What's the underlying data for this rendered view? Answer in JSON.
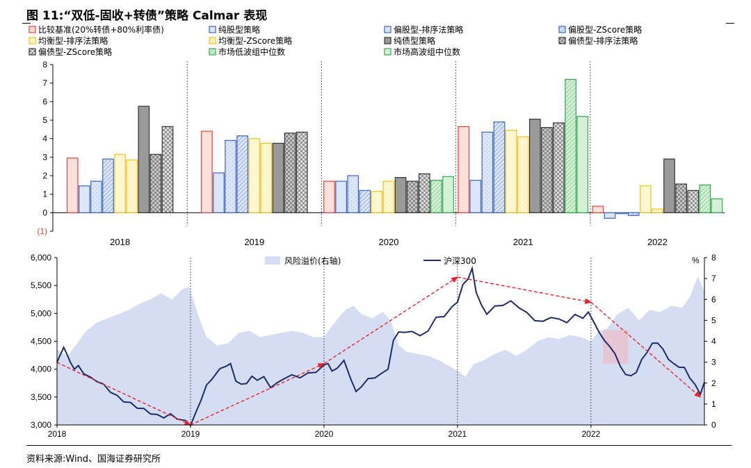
{
  "title": "图 11:“双低-固收+转债”策略 Calmar 表现",
  "source": "资料来源:Wind、国海证券研究所",
  "chart_data": [
    {
      "type": "bar",
      "categories": [
        "2018",
        "2019",
        "2020",
        "2021",
        "2022"
      ],
      "y_ticks": [
        "8",
        "7",
        "6",
        "5",
        "4",
        "3",
        "2",
        "1",
        "0",
        "(1)"
      ],
      "ylim": [
        -1,
        8
      ],
      "grid": false,
      "legend_position": "top",
      "series": [
        {
          "name": "比较基准(20%转债+80%利率债)",
          "color": "#E8403A",
          "fill": "#FBE0DC",
          "pattern": "solid",
          "values": [
            2.95,
            4.4,
            1.7,
            4.65,
            0.35
          ]
        },
        {
          "name": "纯股型策略",
          "color": "#3A64C8",
          "fill": "#DCE6F6",
          "pattern": "solid",
          "values": [
            1.45,
            2.15,
            1.7,
            1.75,
            -0.3
          ]
        },
        {
          "name": "偏股型-排序法策略",
          "color": "#3A64C8",
          "fill": "#DCE6F6",
          "pattern": "light",
          "values": [
            1.7,
            3.9,
            2.0,
            4.35,
            -0.05
          ]
        },
        {
          "name": "偏股型-ZScore策略",
          "color": "#3A64C8",
          "fill": "#DCE6F6",
          "pattern": "hatch",
          "values": [
            2.9,
            4.15,
            1.2,
            4.9,
            -0.15
          ]
        },
        {
          "name": "均衡型策略",
          "color": "#F0C419",
          "fill": "#FFF6D2",
          "pattern": "solid",
          "values": [
            3.15,
            4.0,
            1.15,
            4.45,
            1.45
          ]
        },
        {
          "name": "均衡型-排序法策略",
          "color": "#F0C419",
          "fill": "#FFF6D2",
          "pattern": "light",
          "values": [
            2.85,
            3.75,
            1.7,
            4.1,
            0.2
          ]
        },
        {
          "name": "均衡型-ZScore策略",
          "color": "#F0C419",
          "fill": "#FFF6D2",
          "pattern": "hatch",
          "values": [
            null,
            null,
            null,
            null,
            null
          ]
        },
        {
          "name": "纯债型策略",
          "color": "#333333",
          "fill": "#9A9A9A",
          "pattern": "solid",
          "values": [
            5.75,
            3.75,
            1.9,
            5.05,
            2.9
          ]
        },
        {
          "name": "偏债型-排序法策略",
          "color": "#333333",
          "fill": "#C8C8C8",
          "pattern": "check",
          "values": [
            3.15,
            4.3,
            1.7,
            4.6,
            1.55
          ]
        },
        {
          "name": "偏债型-ZScore策略",
          "color": "#333333",
          "fill": "#DDDDDD",
          "pattern": "check",
          "values": [
            4.65,
            4.35,
            2.1,
            4.85,
            1.2
          ]
        },
        {
          "name": "市场低波组中位数",
          "color": "#2EAA4A",
          "fill": "#D6F0D8",
          "pattern": "hatch",
          "values": [
            null,
            null,
            1.75,
            7.2,
            1.5
          ]
        },
        {
          "name": "市场高波组中位数",
          "color": "#2EAA4A",
          "fill": "#D6F0D8",
          "pattern": "solid",
          "values": [
            null,
            null,
            1.95,
            5.2,
            0.75
          ]
        }
      ],
      "legend_order": [
        0,
        1,
        2,
        3,
        5,
        6,
        7,
        8,
        9,
        10,
        11
      ]
    },
    {
      "type": "area",
      "x_ticks": [
        "2018",
        "2019",
        "2020",
        "2021",
        "2022"
      ],
      "y_left_ticks": [
        "6,000",
        "5,500",
        "5,000",
        "4,500",
        "4,000",
        "3,500",
        "3,000"
      ],
      "y_right_ticks": [
        "8",
        "7",
        "6",
        "5",
        "4",
        "3",
        "2",
        "1",
        "0"
      ],
      "y_right_unit": "%",
      "ylim_left": [
        3000,
        6000
      ],
      "ylim_right": [
        0,
        8
      ],
      "xlim": [
        2018.0,
        2022.85
      ],
      "series": [
        {
          "name": "风险溢价(右轴)",
          "axis": "right",
          "kind": "area",
          "color": "#D4DDF1",
          "points": [
            [
              2018.0,
              3.6
            ],
            [
              2018.08,
              3.3
            ],
            [
              2018.15,
              3.9
            ],
            [
              2018.22,
              4.5
            ],
            [
              2018.3,
              4.9
            ],
            [
              2018.38,
              5.1
            ],
            [
              2018.46,
              5.3
            ],
            [
              2018.54,
              5.5
            ],
            [
              2018.62,
              5.8
            ],
            [
              2018.7,
              6.0
            ],
            [
              2018.78,
              6.3
            ],
            [
              2018.86,
              6.0
            ],
            [
              2018.94,
              6.5
            ],
            [
              2018.99,
              6.6
            ],
            [
              2019.02,
              6.0
            ],
            [
              2019.06,
              5.2
            ],
            [
              2019.12,
              4.2
            ],
            [
              2019.2,
              3.8
            ],
            [
              2019.28,
              3.9
            ],
            [
              2019.36,
              4.4
            ],
            [
              2019.44,
              4.5
            ],
            [
              2019.52,
              4.2
            ],
            [
              2019.6,
              4.3
            ],
            [
              2019.68,
              4.4
            ],
            [
              2019.76,
              4.5
            ],
            [
              2019.84,
              4.4
            ],
            [
              2019.92,
              4.2
            ],
            [
              2020.0,
              4.2
            ],
            [
              2020.08,
              4.9
            ],
            [
              2020.16,
              5.5
            ],
            [
              2020.22,
              5.7
            ],
            [
              2020.28,
              5.3
            ],
            [
              2020.36,
              5.1
            ],
            [
              2020.44,
              5.4
            ],
            [
              2020.5,
              5.0
            ],
            [
              2020.56,
              3.8
            ],
            [
              2020.62,
              3.5
            ],
            [
              2020.7,
              3.4
            ],
            [
              2020.78,
              3.3
            ],
            [
              2020.86,
              3.1
            ],
            [
              2020.94,
              2.8
            ],
            [
              2021.0,
              2.6
            ],
            [
              2021.06,
              2.3
            ],
            [
              2021.12,
              2.9
            ],
            [
              2021.2,
              3.1
            ],
            [
              2021.28,
              3.4
            ],
            [
              2021.36,
              3.6
            ],
            [
              2021.44,
              3.3
            ],
            [
              2021.52,
              3.6
            ],
            [
              2021.6,
              4.0
            ],
            [
              2021.68,
              4.2
            ],
            [
              2021.76,
              4.1
            ],
            [
              2021.84,
              4.3
            ],
            [
              2021.92,
              4.2
            ],
            [
              2022.0,
              4.0
            ],
            [
              2022.06,
              4.5
            ],
            [
              2022.12,
              4.6
            ],
            [
              2022.2,
              5.3
            ],
            [
              2022.28,
              5.6
            ],
            [
              2022.36,
              5.0
            ],
            [
              2022.44,
              5.5
            ],
            [
              2022.52,
              5.4
            ],
            [
              2022.6,
              5.7
            ],
            [
              2022.68,
              5.6
            ],
            [
              2022.74,
              6.1
            ],
            [
              2022.8,
              7.1
            ],
            [
              2022.85,
              6.4
            ]
          ]
        },
        {
          "name": "沪深300",
          "axis": "left",
          "kind": "line",
          "color": "#1B2A6B",
          "points": [
            [
              2018.0,
              4120
            ],
            [
              2018.02,
              4250
            ],
            [
              2018.05,
              4360
            ],
            [
              2018.07,
              4300
            ],
            [
              2018.1,
              4100
            ],
            [
              2018.13,
              4000
            ],
            [
              2018.16,
              4050
            ],
            [
              2018.2,
              3950
            ],
            [
              2018.25,
              3850
            ],
            [
              2018.3,
              3800
            ],
            [
              2018.35,
              3730
            ],
            [
              2018.4,
              3600
            ],
            [
              2018.45,
              3500
            ],
            [
              2018.5,
              3420
            ],
            [
              2018.55,
              3380
            ],
            [
              2018.6,
              3300
            ],
            [
              2018.65,
              3280
            ],
            [
              2018.7,
              3230
            ],
            [
              2018.75,
              3180
            ],
            [
              2018.8,
              3150
            ],
            [
              2018.85,
              3200
            ],
            [
              2018.9,
              3120
            ],
            [
              2018.96,
              3050
            ],
            [
              2019.0,
              3000
            ],
            [
              2019.04,
              3200
            ],
            [
              2019.08,
              3450
            ],
            [
              2019.12,
              3700
            ],
            [
              2019.16,
              3850
            ],
            [
              2019.22,
              4000
            ],
            [
              2019.27,
              4080
            ],
            [
              2019.3,
              4100
            ],
            [
              2019.34,
              3800
            ],
            [
              2019.38,
              3700
            ],
            [
              2019.42,
              3750
            ],
            [
              2019.46,
              3850
            ],
            [
              2019.5,
              3800
            ],
            [
              2019.55,
              3850
            ],
            [
              2019.6,
              3700
            ],
            [
              2019.65,
              3750
            ],
            [
              2019.7,
              3850
            ],
            [
              2019.76,
              3900
            ],
            [
              2019.82,
              3860
            ],
            [
              2019.88,
              3900
            ],
            [
              2019.94,
              3950
            ],
            [
              2020.0,
              4050
            ],
            [
              2020.03,
              4100
            ],
            [
              2020.06,
              3950
            ],
            [
              2020.1,
              4050
            ],
            [
              2020.15,
              4150
            ],
            [
              2020.2,
              3850
            ],
            [
              2020.24,
              3600
            ],
            [
              2020.28,
              3700
            ],
            [
              2020.33,
              3800
            ],
            [
              2020.38,
              3850
            ],
            [
              2020.43,
              3900
            ],
            [
              2020.48,
              4000
            ],
            [
              2020.52,
              4500
            ],
            [
              2020.56,
              4700
            ],
            [
              2020.6,
              4650
            ],
            [
              2020.66,
              4700
            ],
            [
              2020.72,
              4600
            ],
            [
              2020.78,
              4700
            ],
            [
              2020.84,
              4900
            ],
            [
              2020.9,
              4950
            ],
            [
              2020.96,
              5100
            ],
            [
              2021.0,
              5200
            ],
            [
              2021.04,
              5500
            ],
            [
              2021.08,
              5650
            ],
            [
              2021.11,
              5800
            ],
            [
              2021.14,
              5400
            ],
            [
              2021.18,
              5150
            ],
            [
              2021.22,
              5000
            ],
            [
              2021.28,
              5100
            ],
            [
              2021.34,
              5150
            ],
            [
              2021.4,
              5200
            ],
            [
              2021.46,
              5100
            ],
            [
              2021.52,
              5000
            ],
            [
              2021.58,
              4900
            ],
            [
              2021.64,
              4850
            ],
            [
              2021.7,
              4950
            ],
            [
              2021.76,
              4900
            ],
            [
              2021.82,
              4850
            ],
            [
              2021.88,
              4950
            ],
            [
              2021.94,
              4920
            ],
            [
              2021.98,
              5000
            ],
            [
              2022.02,
              4850
            ],
            [
              2022.06,
              4650
            ],
            [
              2022.1,
              4550
            ],
            [
              2022.14,
              4400
            ],
            [
              2022.18,
              4300
            ],
            [
              2022.22,
              4050
            ],
            [
              2022.26,
              3920
            ],
            [
              2022.3,
              3850
            ],
            [
              2022.34,
              3950
            ],
            [
              2022.38,
              4150
            ],
            [
              2022.42,
              4300
            ],
            [
              2022.46,
              4450
            ],
            [
              2022.5,
              4500
            ],
            [
              2022.54,
              4350
            ],
            [
              2022.58,
              4200
            ],
            [
              2022.62,
              4100
            ],
            [
              2022.66,
              4050
            ],
            [
              2022.7,
              4000
            ],
            [
              2022.74,
              3850
            ],
            [
              2022.78,
              3700
            ],
            [
              2022.82,
              3550
            ],
            [
              2022.85,
              3750
            ]
          ]
        }
      ],
      "trend_arrows": [
        [
          [
            2018.0,
            4120
          ],
          [
            2019.0,
            3000
          ]
        ],
        [
          [
            2019.0,
            3000
          ],
          [
            2020.0,
            4100
          ]
        ],
        [
          [
            2020.0,
            4100
          ],
          [
            2021.0,
            5650
          ]
        ],
        [
          [
            2021.0,
            5650
          ],
          [
            2022.0,
            5200
          ]
        ],
        [
          [
            2022.0,
            5200
          ],
          [
            2022.82,
            3500
          ]
        ]
      ],
      "highlight_range": [
        2022.09,
        2022.28
      ],
      "highlight_range_y": [
        4100,
        4700
      ],
      "legend_position": "top-center"
    }
  ]
}
